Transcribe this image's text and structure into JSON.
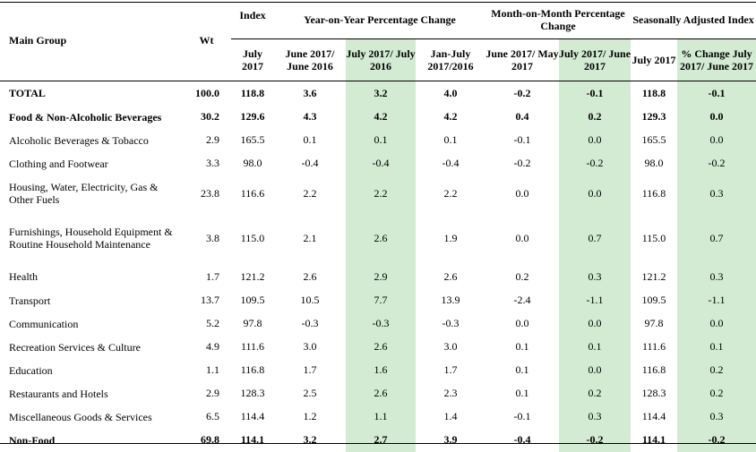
{
  "headers": {
    "main_group": "Main Group",
    "wt": "Wt",
    "index": "Index",
    "yoy": "Year-on-Year Percentage Change",
    "mom": "Month-on-Month Percentage Change",
    "sa": "Seasonally Adjusted Index",
    "sub": {
      "index_july": "July 2017",
      "yoy_june": "June 2017/ June 2016",
      "yoy_july": "July 2017/ July 2016",
      "yoy_janjuly": "Jan-July 2017/2016",
      "mom_june": "June 2017/ May 2017",
      "mom_july": "July 2017/ June 2017",
      "sa_july": "July 2017",
      "sa_change": "% Change July 2017/ June 2017"
    }
  },
  "rows": [
    {
      "name": "TOTAL",
      "wt": "100.0",
      "index": "118.8",
      "yoy_june": "3.6",
      "yoy_july": "3.2",
      "yoy_janjuly": "4.0",
      "mom_june": "-0.2",
      "mom_july": "-0.1",
      "sa_index": "118.8",
      "sa_change": "-0.1"
    },
    {
      "name": "Food & Non-Alcoholic Beverages",
      "wt": "30.2",
      "index": "129.6",
      "yoy_june": "4.3",
      "yoy_july": "4.2",
      "yoy_janjuly": "4.2",
      "mom_june": "0.4",
      "mom_july": "0.2",
      "sa_index": "129.3",
      "sa_change": "0.0"
    },
    {
      "name": "Alcoholic Beverages & Tobacco",
      "wt": "2.9",
      "index": "165.5",
      "yoy_june": "0.1",
      "yoy_july": "0.1",
      "yoy_janjuly": "0.1",
      "mom_june": "-0.1",
      "mom_july": "0.0",
      "sa_index": "165.5",
      "sa_change": "0.0"
    },
    {
      "name": "Clothing and Footwear",
      "wt": "3.3",
      "index": "98.0",
      "yoy_june": "-0.4",
      "yoy_july": "-0.4",
      "yoy_janjuly": "-0.4",
      "mom_june": "-0.2",
      "mom_july": "-0.2",
      "sa_index": "98.0",
      "sa_change": "-0.2"
    },
    {
      "name": "Housing, Water, Electricity, Gas & Other Fuels",
      "wt": "23.8",
      "index": "116.6",
      "yoy_june": "2.2",
      "yoy_july": "2.2",
      "yoy_janjuly": "2.2",
      "mom_june": "0.0",
      "mom_july": "0.0",
      "sa_index": "116.8",
      "sa_change": "0.3"
    },
    {
      "name": "Furnishings, Household Equipment & Routine Household Maintenance",
      "wt": "3.8",
      "index": "115.0",
      "yoy_june": "2.1",
      "yoy_july": "2.6",
      "yoy_janjuly": "1.9",
      "mom_june": "0.0",
      "mom_july": "0.7",
      "sa_index": "115.0",
      "sa_change": "0.7"
    },
    {
      "name": "Health",
      "wt": "1.7",
      "index": "121.2",
      "yoy_june": "2.6",
      "yoy_july": "2.9",
      "yoy_janjuly": "2.6",
      "mom_june": "0.2",
      "mom_july": "0.3",
      "sa_index": "121.2",
      "sa_change": "0.3"
    },
    {
      "name": "Transport",
      "wt": "13.7",
      "index": "109.5",
      "yoy_june": "10.5",
      "yoy_july": "7.7",
      "yoy_janjuly": "13.9",
      "mom_june": "-2.4",
      "mom_july": "-1.1",
      "sa_index": "109.5",
      "sa_change": "-1.1"
    },
    {
      "name": "Communication",
      "wt": "5.2",
      "index": "97.8",
      "yoy_june": "-0.3",
      "yoy_july": "-0.3",
      "yoy_janjuly": "-0.3",
      "mom_june": "0.0",
      "mom_july": "0.0",
      "sa_index": "97.8",
      "sa_change": "0.0"
    },
    {
      "name": "Recreation Services & Culture",
      "wt": "4.9",
      "index": "111.6",
      "yoy_june": "3.0",
      "yoy_july": "2.6",
      "yoy_janjuly": "3.0",
      "mom_june": "0.1",
      "mom_july": "0.1",
      "sa_index": "111.6",
      "sa_change": "0.1"
    },
    {
      "name": "Education",
      "wt": "1.1",
      "index": "116.8",
      "yoy_june": "1.7",
      "yoy_july": "1.6",
      "yoy_janjuly": "1.7",
      "mom_june": "0.1",
      "mom_july": "0.0",
      "sa_index": "116.8",
      "sa_change": "0.2"
    },
    {
      "name": "Restaurants and Hotels",
      "wt": "2.9",
      "index": "128.3",
      "yoy_june": "2.5",
      "yoy_july": "2.6",
      "yoy_janjuly": "2.3",
      "mom_june": "0.1",
      "mom_july": "0.2",
      "sa_index": "128.3",
      "sa_change": "0.2"
    },
    {
      "name": "Miscellaneous Goods & Services",
      "wt": "6.5",
      "index": "114.4",
      "yoy_june": "1.2",
      "yoy_july": "1.1",
      "yoy_janjuly": "1.4",
      "mom_june": "-0.1",
      "mom_july": "0.3",
      "sa_index": "114.4",
      "sa_change": "0.3"
    },
    {
      "name": "Non-Food",
      "wt": "69.8",
      "index": "114.1",
      "yoy_june": "3.2",
      "yoy_july": "2.7",
      "yoy_janjuly": "3.9",
      "mom_june": "-0.4",
      "mom_july": "-0.2",
      "sa_index": "114.1",
      "sa_change": "-0.2"
    }
  ],
  "colors": {
    "highlight": "#d3ead3"
  }
}
